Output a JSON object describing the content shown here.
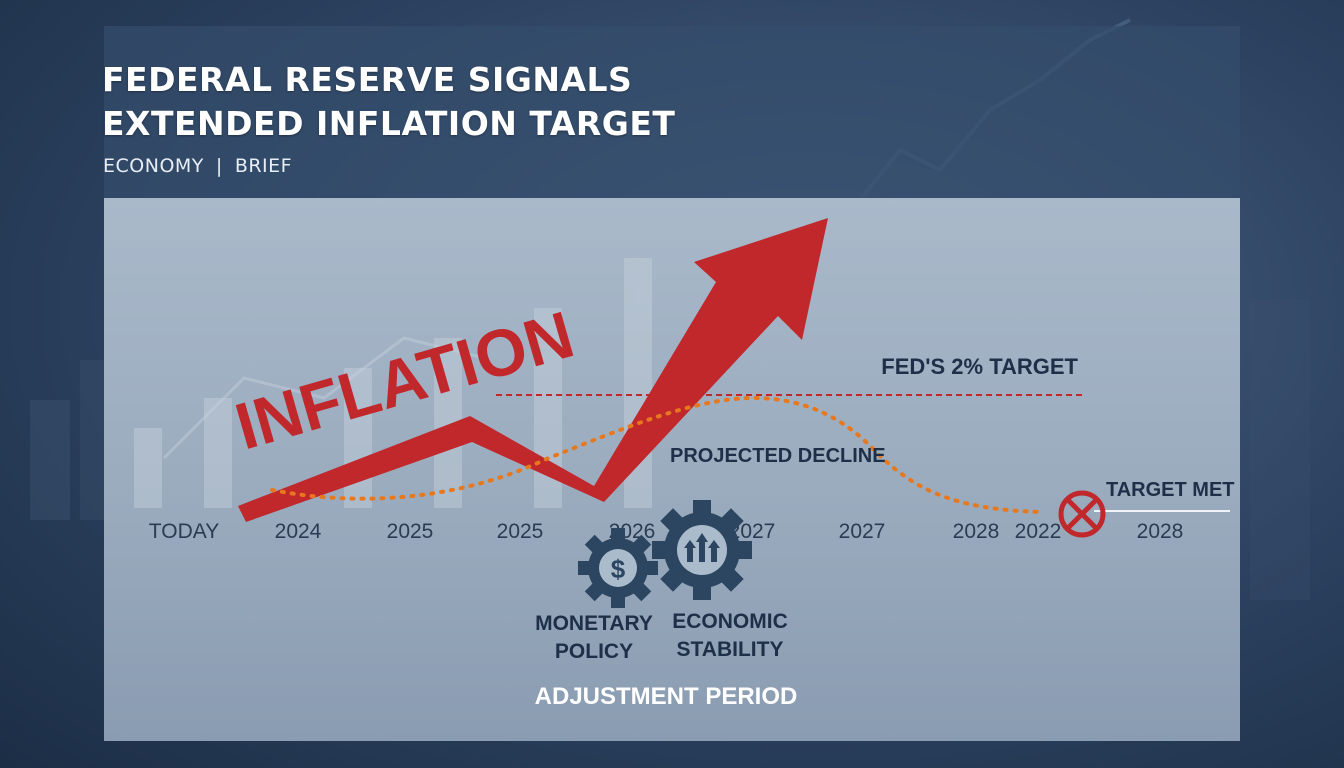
{
  "headline": {
    "line1": "FEDERAL RESERVE SIGNALS",
    "line2": "EXTENDED INFLATION TARGET"
  },
  "byline": {
    "section": "ECONOMY",
    "separator": "|",
    "type": "BRIEF"
  },
  "graphic": {
    "inflation_label": "INFLATION",
    "target_label": "FED'S 2% TARGET",
    "projection_label": "PROJECTED DECLINE",
    "target_met_label": "TARGET MET",
    "timeline": [
      "TODAY",
      "2024",
      "2025",
      "2025",
      "2026",
      "2027",
      "2027",
      "2028",
      "2022",
      "2028"
    ],
    "gear_left_symbol": "$",
    "gear_left_label_line1": "MONETARY",
    "gear_left_label_line2": "POLICY",
    "gear_right_label_line1": "ECONOMIC",
    "gear_right_label_line2": "STABILITY",
    "period_label": "ADJUSTMENT PERIOD"
  },
  "colors": {
    "arrow": "#c0282c",
    "projection": "#e8781e",
    "target_line": "#c0282c",
    "gear": "#2c4560",
    "text_dark": "#1e3048"
  }
}
